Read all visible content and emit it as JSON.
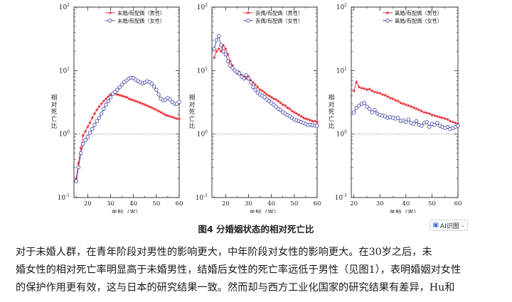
{
  "figure": {
    "caption": "图4   分婚姻状态的相对死亡比",
    "ai_button_label": "AI识图"
  },
  "paragraph_lines": [
    "对于未婚人群，在青年阶段对男性的影响更大，中年阶段对女性的影响更大。在30岁之后，未",
    "婚女性的相对死亡率明显高于未婚男性，结婚后女性的死亡率远低于男性（见图1），表明婚姻对女性",
    "的保护作用更有效，这与日本的研究结果一致。然而却与西方工业化国家的研究结果有差异，Hu和"
  ],
  "colors": {
    "male": "#e8323c",
    "female": "#3a3fa6",
    "reference_line": "#888888",
    "axis": "#222222"
  },
  "chart_data": [
    {
      "type": "line",
      "ylabel": "相对死亡比",
      "xlabel": "年龄（岁）",
      "y_scale": "log",
      "ylim": [
        0.1,
        100
      ],
      "y_ticks": [
        "10-1",
        "100",
        "101",
        "102"
      ],
      "xlim": [
        14,
        60
      ],
      "x_ticks": [
        20,
        30,
        40,
        50,
        60
      ],
      "reference_y": 1,
      "legend": "top-right",
      "series": [
        {
          "name": "未婚/有配偶（男性）",
          "marker": "star",
          "color": "#e8323c",
          "x": [
            15,
            16,
            17,
            18,
            19,
            20,
            21,
            22,
            23,
            24,
            25,
            26,
            27,
            28,
            29,
            30,
            31,
            32,
            33,
            34,
            35,
            36,
            37,
            38,
            39,
            40,
            41,
            42,
            43,
            44,
            45,
            46,
            47,
            48,
            49,
            50,
            51,
            52,
            53,
            54,
            55,
            56,
            57,
            58,
            59,
            60
          ],
          "y": [
            0.2,
            0.35,
            0.6,
            0.95,
            1.1,
            1.3,
            1.5,
            1.8,
            2.1,
            2.4,
            2.7,
            3.0,
            3.3,
            3.6,
            3.9,
            4.2,
            4.3,
            4.3,
            4.2,
            4.1,
            4.0,
            3.9,
            3.8,
            3.6,
            3.5,
            3.4,
            3.3,
            3.2,
            3.1,
            3.0,
            2.9,
            2.8,
            2.7,
            2.6,
            2.5,
            2.4,
            2.3,
            2.2,
            2.1,
            2.0,
            1.95,
            1.9,
            1.85,
            1.8,
            1.75,
            1.75
          ]
        },
        {
          "name": "未婚/有配偶（女性）",
          "marker": "circle",
          "color": "#3a3fa6",
          "x": [
            15,
            16,
            17,
            18,
            19,
            20,
            21,
            22,
            23,
            24,
            25,
            26,
            27,
            28,
            29,
            30,
            31,
            32,
            33,
            34,
            35,
            36,
            37,
            38,
            39,
            40,
            41,
            42,
            43,
            44,
            45,
            46,
            47,
            48,
            49,
            50,
            51,
            52,
            53,
            54,
            55,
            56,
            57,
            58,
            59,
            60
          ],
          "y": [
            0.18,
            0.3,
            0.5,
            0.7,
            0.8,
            0.9,
            1.05,
            1.2,
            1.4,
            1.6,
            1.8,
            2.1,
            2.5,
            2.9,
            3.3,
            3.8,
            4.3,
            4.6,
            5.0,
            5.5,
            6.0,
            6.6,
            7.0,
            7.5,
            7.7,
            7.6,
            7.2,
            6.8,
            6.5,
            6.3,
            6.5,
            6.8,
            6.6,
            6.2,
            5.6,
            5.0,
            4.2,
            3.6,
            3.4,
            3.5,
            3.7,
            3.5,
            3.2,
            3.0,
            3.0,
            3.2
          ]
        }
      ]
    },
    {
      "type": "line",
      "ylabel": "相对死亡比",
      "xlabel": "年龄（岁）",
      "y_scale": "log",
      "ylim": [
        0.1,
        100
      ],
      "y_ticks": [
        "10-1",
        "100",
        "101",
        "102"
      ],
      "xlim": [
        14,
        60
      ],
      "x_ticks": [
        20,
        30,
        40,
        50,
        60
      ],
      "reference_y": 1,
      "legend": "top-right",
      "series": [
        {
          "name": "丧偶/有配偶（男性）",
          "marker": "star",
          "color": "#e8323c",
          "x": [
            15,
            16,
            17,
            18,
            19,
            20,
            21,
            22,
            23,
            24,
            25,
            26,
            27,
            28,
            29,
            30,
            31,
            32,
            33,
            34,
            35,
            36,
            37,
            38,
            39,
            40,
            41,
            42,
            43,
            44,
            45,
            46,
            47,
            48,
            49,
            50,
            51,
            52,
            53,
            54,
            55,
            56,
            57,
            58,
            59,
            60
          ],
          "y": [
            16,
            20,
            22,
            20,
            25,
            22,
            18,
            14,
            12,
            10,
            9,
            9.5,
            8.5,
            8,
            7.5,
            8,
            7,
            6.5,
            6,
            5.5,
            5,
            4.8,
            4.5,
            4.2,
            4,
            3.8,
            3.6,
            3.5,
            3.3,
            3.1,
            2.9,
            2.8,
            2.6,
            2.5,
            2.3,
            2.2,
            2.1,
            2,
            1.9,
            1.8,
            1.75,
            1.7,
            1.65,
            1.6,
            1.6,
            1.55
          ]
        },
        {
          "name": "丧偶/有配偶（女性）",
          "marker": "circle",
          "color": "#3a3fa6",
          "x": [
            15,
            16,
            17,
            18,
            19,
            20,
            21,
            22,
            23,
            24,
            25,
            26,
            27,
            28,
            29,
            30,
            31,
            32,
            33,
            34,
            35,
            36,
            37,
            38,
            39,
            40,
            41,
            42,
            43,
            44,
            45,
            46,
            47,
            48,
            49,
            50,
            51,
            52,
            53,
            54,
            55,
            56,
            57,
            58,
            59,
            60
          ],
          "y": [
            22,
            30,
            35,
            25,
            20,
            18,
            14,
            12,
            11,
            10,
            9.5,
            9,
            8,
            7.5,
            8.5,
            7.5,
            6.5,
            5.5,
            5,
            4.5,
            4.2,
            4,
            3.8,
            3.5,
            3.3,
            3.1,
            2.9,
            2.7,
            2.5,
            2.4,
            2.2,
            2.1,
            2,
            1.9,
            1.8,
            1.7,
            1.65,
            1.6,
            1.55,
            1.5,
            1.45,
            1.4,
            1.4,
            1.38,
            1.36,
            1.35
          ]
        }
      ]
    },
    {
      "type": "line",
      "ylabel": "相对死亡比",
      "xlabel": "年龄（岁）",
      "y_scale": "log",
      "ylim": [
        0.1,
        100
      ],
      "y_ticks": [
        "10-1",
        "100",
        "101",
        "102"
      ],
      "xlim": [
        19,
        60
      ],
      "x_ticks": [
        20,
        30,
        40,
        50,
        60
      ],
      "reference_y": 1,
      "legend": "top-right",
      "series": [
        {
          "name": "离婚/有配偶（男性）",
          "marker": "star",
          "color": "#e8323c",
          "x": [
            20,
            21,
            22,
            23,
            24,
            25,
            26,
            27,
            28,
            29,
            30,
            31,
            32,
            33,
            34,
            35,
            36,
            37,
            38,
            39,
            40,
            41,
            42,
            43,
            44,
            45,
            46,
            47,
            48,
            49,
            50,
            51,
            52,
            53,
            54,
            55,
            56,
            57,
            58,
            59,
            60
          ],
          "y": [
            4.8,
            6.6,
            5.5,
            5.3,
            5.2,
            5,
            5.1,
            4.8,
            4.6,
            4.5,
            4.4,
            4.2,
            4.1,
            3.9,
            3.7,
            3.6,
            3.4,
            3.3,
            3.1,
            3,
            2.9,
            2.8,
            2.7,
            2.6,
            2.5,
            2.4,
            2.3,
            2.2,
            2.15,
            2.1,
            2,
            1.95,
            1.9,
            1.85,
            1.8,
            1.75,
            1.7,
            1.6,
            1.55,
            1.5,
            1.45
          ]
        },
        {
          "name": "离婚/有配偶（女性）",
          "marker": "circle",
          "color": "#3a3fa6",
          "x": [
            20,
            21,
            22,
            23,
            24,
            25,
            26,
            27,
            28,
            29,
            30,
            31,
            32,
            33,
            34,
            35,
            36,
            37,
            38,
            39,
            40,
            41,
            42,
            43,
            44,
            45,
            46,
            47,
            48,
            49,
            50,
            51,
            52,
            53,
            54,
            55,
            56,
            57,
            58,
            59,
            60
          ],
          "y": [
            2.2,
            2.6,
            2.8,
            3,
            3.1,
            2.7,
            2.5,
            2.2,
            2.4,
            2.1,
            2,
            1.95,
            1.9,
            1.8,
            1.85,
            1.8,
            1.75,
            1.8,
            1.6,
            1.65,
            1.55,
            1.7,
            1.5,
            1.45,
            1.6,
            1.4,
            1.35,
            1.5,
            1.55,
            1.3,
            1.45,
            1.4,
            1.5,
            1.35,
            1.3,
            1.25,
            1.3,
            1.2,
            1.25,
            1.3,
            1.35
          ]
        }
      ]
    }
  ]
}
